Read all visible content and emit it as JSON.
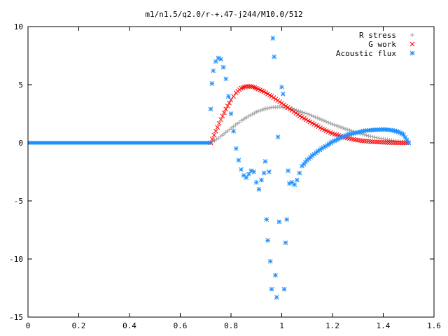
{
  "chart_data": {
    "type": "scatter",
    "title": "m1/n1.5/q2.0/r-+.47-j244/M10.0/512",
    "xlabel": "",
    "ylabel": "",
    "xlim": [
      0,
      1.6
    ],
    "ylim": [
      -15,
      10
    ],
    "x_ticks": [
      0,
      0.2,
      0.4,
      0.6,
      0.8,
      1,
      1.2,
      1.4,
      1.6
    ],
    "x_tick_labels": [
      "0",
      "0.2",
      "0.4",
      "0.6",
      "0.8",
      "1",
      "1.2",
      "1.4",
      "1.6"
    ],
    "y_ticks": [
      -15,
      -10,
      -5,
      0,
      5,
      10
    ],
    "y_tick_labels": [
      "-15",
      "-10",
      "-5",
      "0",
      "5",
      "10"
    ],
    "grid": false,
    "legend_position": "top-right",
    "series": [
      {
        "name": "R stress",
        "marker": "plus",
        "color": "#a0a0a0",
        "points": [
          [
            0.72,
            0.0
          ],
          [
            0.75,
            0.4
          ],
          [
            0.78,
            0.9
          ],
          [
            0.81,
            1.4
          ],
          [
            0.84,
            1.9
          ],
          [
            0.87,
            2.3
          ],
          [
            0.9,
            2.65
          ],
          [
            0.93,
            2.9
          ],
          [
            0.96,
            3.05
          ],
          [
            0.99,
            3.08
          ],
          [
            1.02,
            3.0
          ],
          [
            1.05,
            2.85
          ],
          [
            1.1,
            2.5
          ],
          [
            1.15,
            2.05
          ],
          [
            1.2,
            1.6
          ],
          [
            1.25,
            1.2
          ],
          [
            1.3,
            0.85
          ],
          [
            1.35,
            0.55
          ],
          [
            1.4,
            0.32
          ],
          [
            1.45,
            0.15
          ],
          [
            1.5,
            0.02
          ]
        ]
      },
      {
        "name": "G work",
        "marker": "cross",
        "color": "#ff0000",
        "points": [
          [
            0.72,
            0.0
          ],
          [
            0.74,
            1.0
          ],
          [
            0.76,
            2.0
          ],
          [
            0.78,
            2.9
          ],
          [
            0.8,
            3.7
          ],
          [
            0.82,
            4.3
          ],
          [
            0.84,
            4.7
          ],
          [
            0.86,
            4.85
          ],
          [
            0.88,
            4.85
          ],
          [
            0.9,
            4.7
          ],
          [
            0.93,
            4.4
          ],
          [
            0.96,
            4.0
          ],
          [
            1.0,
            3.4
          ],
          [
            1.04,
            2.8
          ],
          [
            1.08,
            2.2
          ],
          [
            1.12,
            1.7
          ],
          [
            1.16,
            1.2
          ],
          [
            1.2,
            0.8
          ],
          [
            1.25,
            0.45
          ],
          [
            1.3,
            0.22
          ],
          [
            1.35,
            0.1
          ],
          [
            1.4,
            0.04
          ],
          [
            1.45,
            0.01
          ],
          [
            1.5,
            0.0
          ]
        ]
      },
      {
        "name": "Acoustic flux",
        "marker": "star",
        "color": "#1e90ff",
        "points": [
          [
            0.72,
            2.9
          ],
          [
            0.725,
            5.1
          ],
          [
            0.73,
            6.2
          ],
          [
            0.74,
            7.0
          ],
          [
            0.75,
            7.3
          ],
          [
            0.76,
            7.2
          ],
          [
            0.77,
            6.5
          ],
          [
            0.78,
            5.5
          ],
          [
            0.79,
            4.0
          ],
          [
            0.8,
            2.5
          ],
          [
            0.81,
            1.0
          ],
          [
            0.82,
            -0.5
          ],
          [
            0.83,
            -1.5
          ],
          [
            0.84,
            -2.3
          ],
          [
            0.85,
            -2.8
          ],
          [
            0.86,
            -3.0
          ],
          [
            0.87,
            -2.7
          ],
          [
            0.88,
            -2.4
          ],
          [
            0.89,
            -2.5
          ],
          [
            0.9,
            -3.4
          ],
          [
            0.91,
            -4.0
          ],
          [
            0.92,
            -3.2
          ],
          [
            0.93,
            -2.6
          ],
          [
            0.935,
            -1.6
          ],
          [
            0.94,
            -6.6
          ],
          [
            0.945,
            -8.4
          ],
          [
            0.95,
            -2.5
          ],
          [
            0.955,
            -10.2
          ],
          [
            0.96,
            -12.6
          ],
          [
            0.965,
            9.0
          ],
          [
            0.97,
            7.4
          ],
          [
            0.975,
            -11.4
          ],
          [
            0.98,
            -13.3
          ],
          [
            0.985,
            0.5
          ],
          [
            0.99,
            -6.8
          ],
          [
            1.0,
            4.8
          ],
          [
            1.005,
            4.2
          ],
          [
            1.01,
            -12.6
          ],
          [
            1.015,
            -8.6
          ],
          [
            1.02,
            -6.6
          ],
          [
            1.025,
            -2.4
          ],
          [
            1.03,
            -3.5
          ],
          [
            1.04,
            -3.4
          ],
          [
            1.05,
            -3.6
          ],
          [
            1.06,
            -3.2
          ],
          [
            1.07,
            -2.6
          ],
          [
            1.08,
            -2.0
          ],
          [
            1.1,
            -1.5
          ],
          [
            1.12,
            -1.1
          ],
          [
            1.15,
            -0.6
          ],
          [
            1.18,
            -0.2
          ],
          [
            1.2,
            0.1
          ],
          [
            1.23,
            0.4
          ],
          [
            1.26,
            0.7
          ],
          [
            1.3,
            0.9
          ],
          [
            1.33,
            1.05
          ],
          [
            1.36,
            1.1
          ],
          [
            1.4,
            1.15
          ],
          [
            1.43,
            1.1
          ],
          [
            1.46,
            0.95
          ],
          [
            1.48,
            0.7
          ],
          [
            1.5,
            0.0
          ]
        ]
      }
    ]
  }
}
